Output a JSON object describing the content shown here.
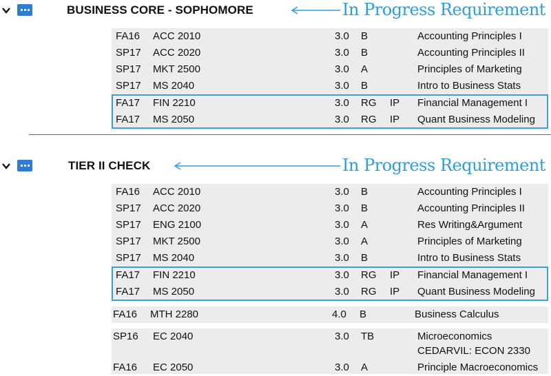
{
  "accent": "#2d9de0",
  "divider_color": "#d23c3c",
  "sections": [
    {
      "title": "BUSINESS CORE - SOPHOMORE",
      "annotation": "In Progress Requirement",
      "courses": [
        {
          "term": "FA16",
          "course": "ACC 2010",
          "credits": "3.0",
          "grade": "B",
          "status": "",
          "title": "Accounting Principles I"
        },
        {
          "term": "SP17",
          "course": "ACC 2020",
          "credits": "3.0",
          "grade": "B",
          "status": "",
          "title": "Accounting Principles II"
        },
        {
          "term": "SP17",
          "course": "MKT 2500",
          "credits": "3.0",
          "grade": "A",
          "status": "",
          "title": "Principles of Marketing"
        },
        {
          "term": "SP17",
          "course": "MS 2040",
          "credits": "3.0",
          "grade": "B",
          "status": "",
          "title": "Intro to Business Stats"
        },
        {
          "term": "FA17",
          "course": "FIN 2210",
          "credits": "3.0",
          "grade": "RG",
          "status": "IP",
          "title": "Financial Management I"
        },
        {
          "term": "FA17",
          "course": "MS 2050",
          "credits": "3.0",
          "grade": "RG",
          "status": "IP",
          "title": "Quant Business Modeling"
        }
      ]
    },
    {
      "title": "TIER II CHECK",
      "annotation": "In Progress Requirement",
      "courses": [
        {
          "term": "FA16",
          "course": "ACC 2010",
          "credits": "3.0",
          "grade": "B",
          "status": "",
          "title": "Accounting Principles I"
        },
        {
          "term": "SP17",
          "course": "ACC 2020",
          "credits": "3.0",
          "grade": "B",
          "status": "",
          "title": "Accounting Principles II"
        },
        {
          "term": "SP17",
          "course": "ENG 2100",
          "credits": "3.0",
          "grade": "A",
          "status": "",
          "title": "Res Writing&Argument"
        },
        {
          "term": "SP17",
          "course": "MKT 2500",
          "credits": "3.0",
          "grade": "A",
          "status": "",
          "title": "Principles of Marketing"
        },
        {
          "term": "SP17",
          "course": "MS 2040",
          "credits": "3.0",
          "grade": "B",
          "status": "",
          "title": "Intro to Business Stats"
        },
        {
          "term": "FA17",
          "course": "FIN 2210",
          "credits": "3.0",
          "grade": "RG",
          "status": "IP",
          "title": "Financial Management I"
        },
        {
          "term": "FA17",
          "course": "MS 2050",
          "credits": "3.0",
          "grade": "RG",
          "status": "IP",
          "title": "Quant Business Modeling"
        }
      ]
    }
  ],
  "extra_courses": [
    {
      "term": "FA16",
      "course": "MTH 2280",
      "credits": "4.0",
      "grade": "B",
      "title": "Business Calculus"
    },
    {
      "term": "SP16",
      "course": "EC 2040",
      "credits": "3.0",
      "grade": "TB",
      "title": "Microeconomics",
      "title2": "CEDARVIL: ECON 2330"
    },
    {
      "term": "FA16",
      "course": "EC 2050",
      "credits": "3.0",
      "grade": "A",
      "title": "Principle Macroeconomics"
    }
  ]
}
